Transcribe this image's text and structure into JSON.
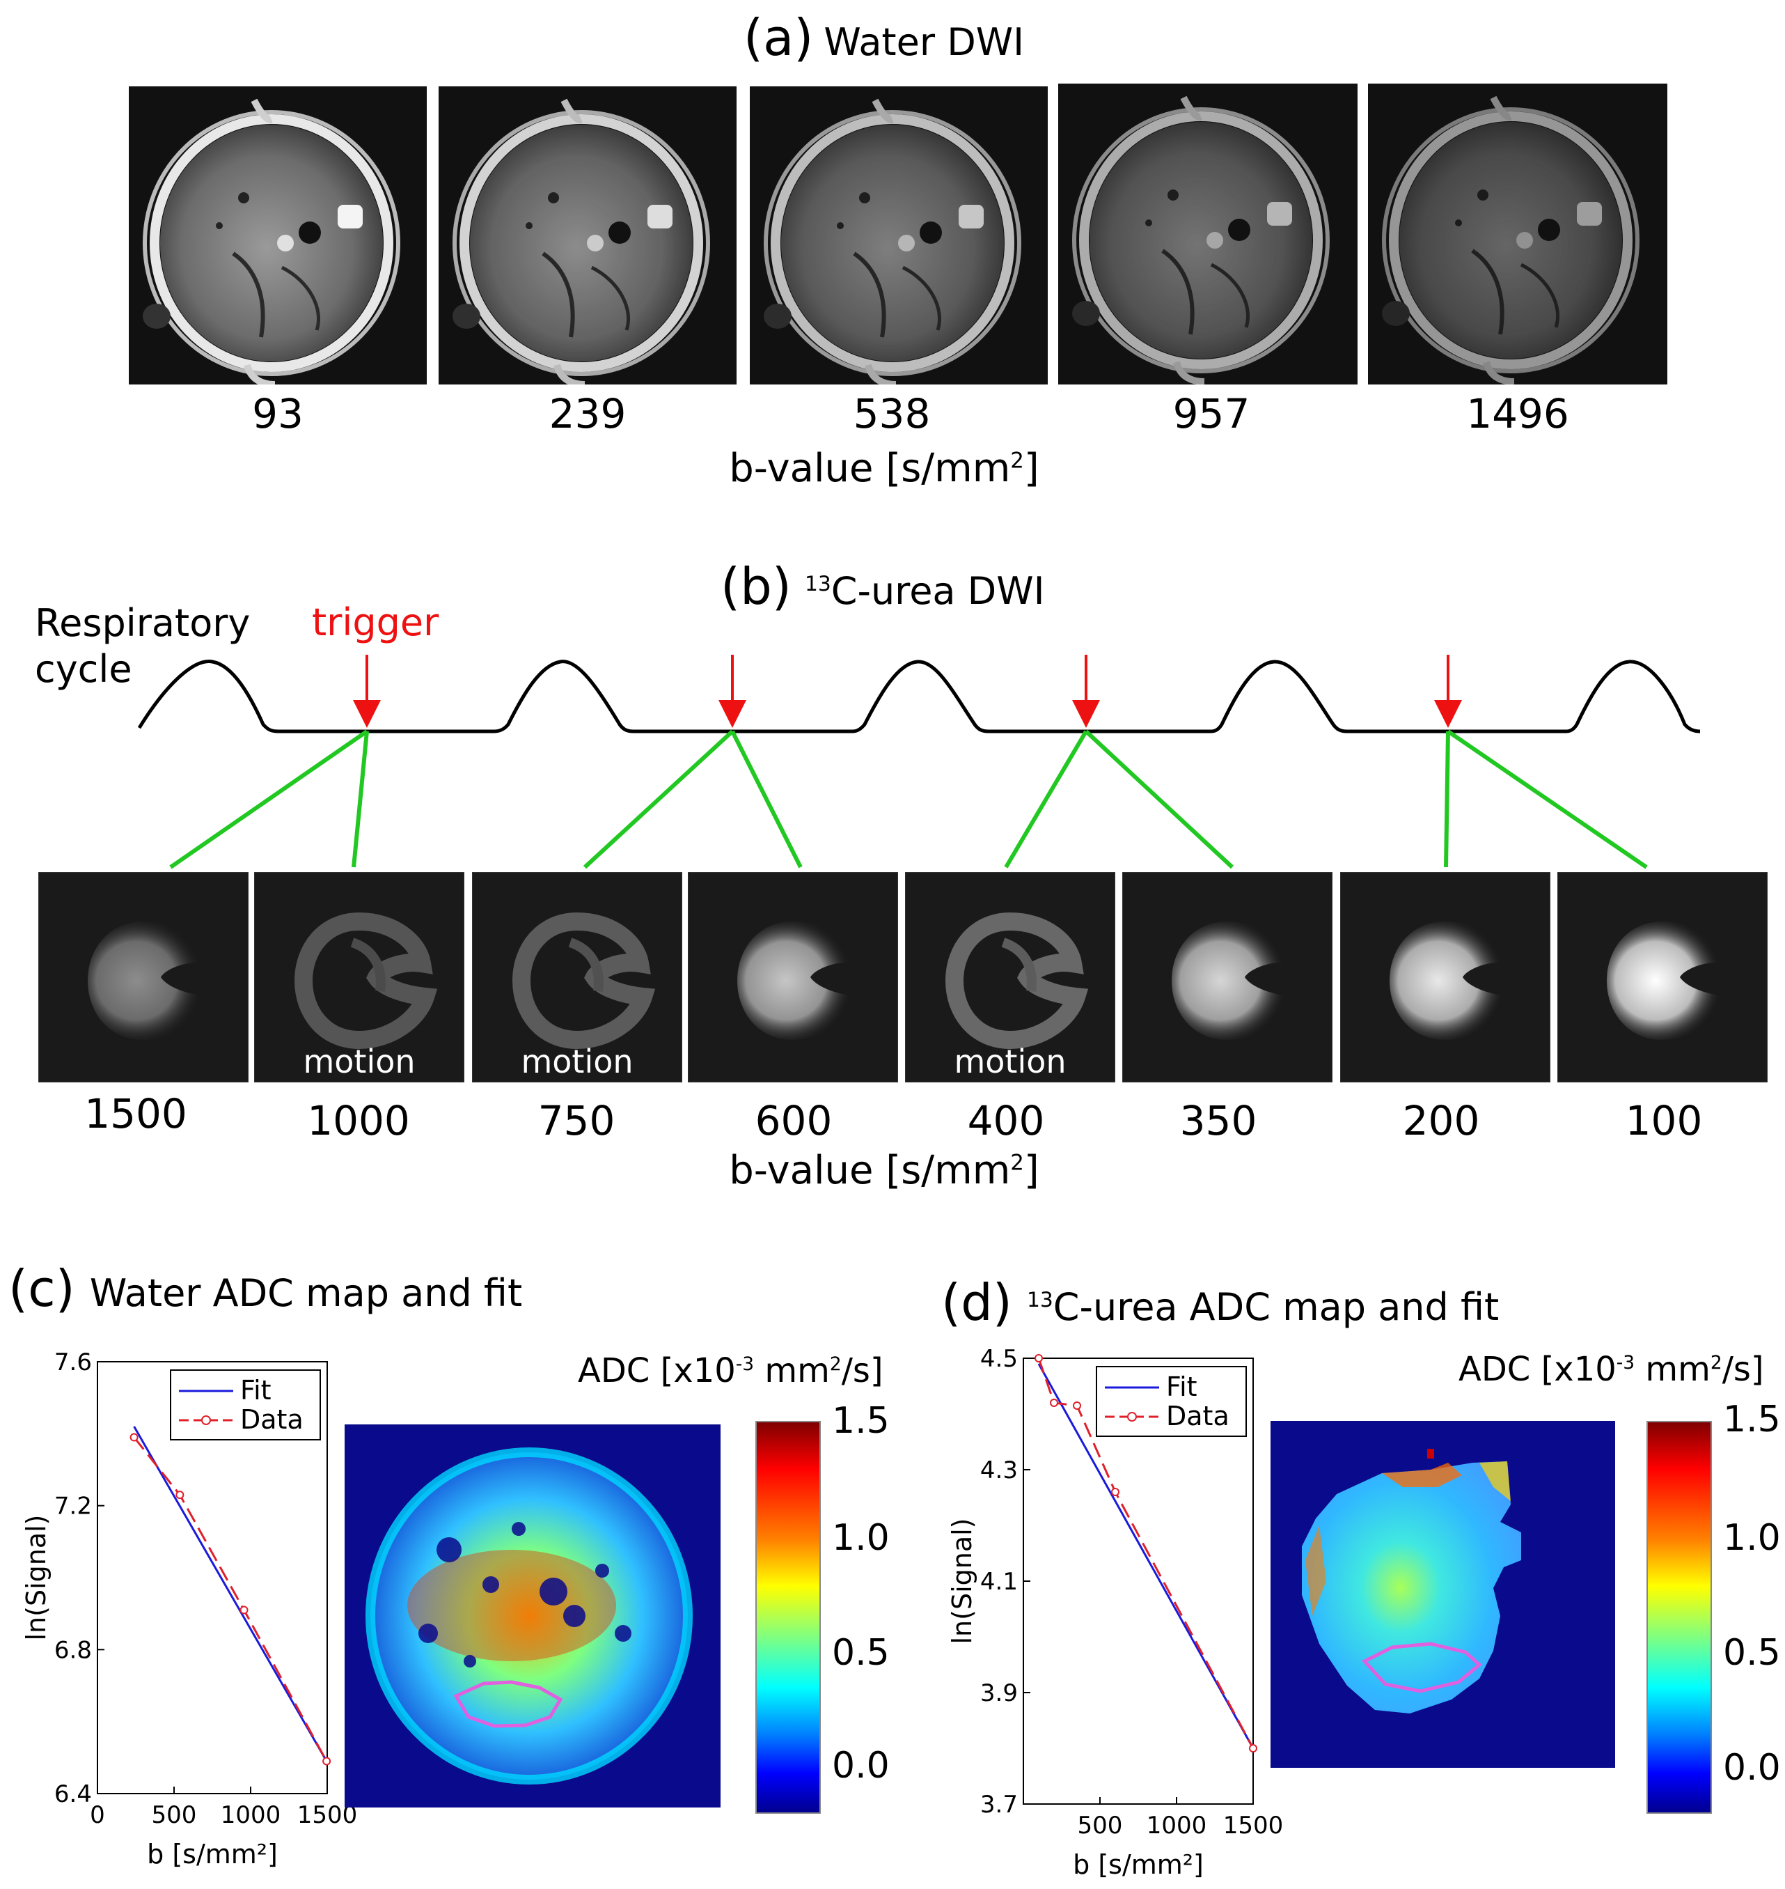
{
  "panel_a": {
    "letter": "(a)",
    "title": "Water DWI",
    "b_values": [
      "93",
      "239",
      "538",
      "957",
      "1496"
    ],
    "xlabel_pre": "b-value [s/mm",
    "xlabel_sup": "2",
    "xlabel_post": "]"
  },
  "panel_b": {
    "letter": "(b)",
    "title_sup": "13",
    "title": "C-urea DWI",
    "resp_label_1": "Respiratory",
    "resp_label_2": "cycle",
    "trigger_label": "trigger",
    "b_values": [
      "1500",
      "1000",
      "750",
      "600",
      "400",
      "350",
      "200",
      "100"
    ],
    "motion_label": "motion",
    "xlabel_pre": "b-value [s/mm",
    "xlabel_sup": "2",
    "xlabel_post": "]"
  },
  "panel_c": {
    "letter": "(c)",
    "title": "Water ADC map and fit",
    "colorbar_title_pre": "ADC [x10",
    "colorbar_title_sup": "-3",
    "colorbar_title_mid": " mm",
    "colorbar_title_sup2": "2",
    "colorbar_title_post": "/s]",
    "colorbar_ticks": [
      "1.5",
      "1.0",
      "0.5",
      "0.0"
    ]
  },
  "panel_d": {
    "letter": "(d)",
    "title_sup": "13",
    "title": "C-urea ADC map and fit",
    "colorbar_title_pre": "ADC [x10",
    "colorbar_title_sup": "-3",
    "colorbar_title_mid": " mm",
    "colorbar_title_sup2": "2",
    "colorbar_title_post": "/s]",
    "colorbar_ticks": [
      "1.5",
      "1.0",
      "0.5",
      "0.0"
    ]
  },
  "colors": {
    "fit": "#1a1adc",
    "data": "#e0202a",
    "trigger": "#ee1111",
    "connector": "#22c822",
    "roi": "#e060e0"
  },
  "chart_data": [
    {
      "type": "line",
      "id": "water-fit",
      "title": "",
      "xlabel": "b [s/mm²]",
      "ylabel": "ln(Signal)",
      "xlim": [
        0,
        1500
      ],
      "ylim": [
        6.4,
        7.6
      ],
      "xticks": [
        0,
        500,
        1000,
        1500
      ],
      "xtick_labels": [
        "0",
        "500",
        "1000",
        "1500"
      ],
      "yticks": [
        6.4,
        6.8,
        7.2,
        7.6
      ],
      "ytick_labels": [
        "6.4",
        "6.8",
        "7.2",
        "7.6"
      ],
      "legend": "top-right",
      "series": [
        {
          "name": "Fit",
          "x": [
            239,
            1496
          ],
          "y": [
            7.42,
            6.49
          ]
        },
        {
          "name": "Data",
          "x": [
            239,
            538,
            957,
            1496
          ],
          "y": [
            7.39,
            7.23,
            6.91,
            6.49
          ]
        }
      ]
    },
    {
      "type": "line",
      "id": "urea-fit",
      "title": "",
      "xlabel": "b [s/mm²]",
      "ylabel": "ln(Signal)",
      "xlim": [
        0,
        1500
      ],
      "ylim": [
        3.7,
        4.5
      ],
      "xticks": [
        500,
        1000,
        1500
      ],
      "xtick_labels": [
        "500",
        "1000",
        "1500"
      ],
      "yticks": [
        3.7,
        3.9,
        4.1,
        4.3,
        4.5
      ],
      "ytick_labels": [
        "3.7",
        "3.9",
        "4.1",
        "4.3",
        "4.5"
      ],
      "legend": "top-right",
      "series": [
        {
          "name": "Fit",
          "x": [
            100,
            1500
          ],
          "y": [
            4.49,
            3.8
          ]
        },
        {
          "name": "Data",
          "x": [
            100,
            200,
            350,
            600,
            1500
          ],
          "y": [
            4.5,
            4.42,
            4.415,
            4.26,
            3.8
          ]
        }
      ]
    }
  ]
}
